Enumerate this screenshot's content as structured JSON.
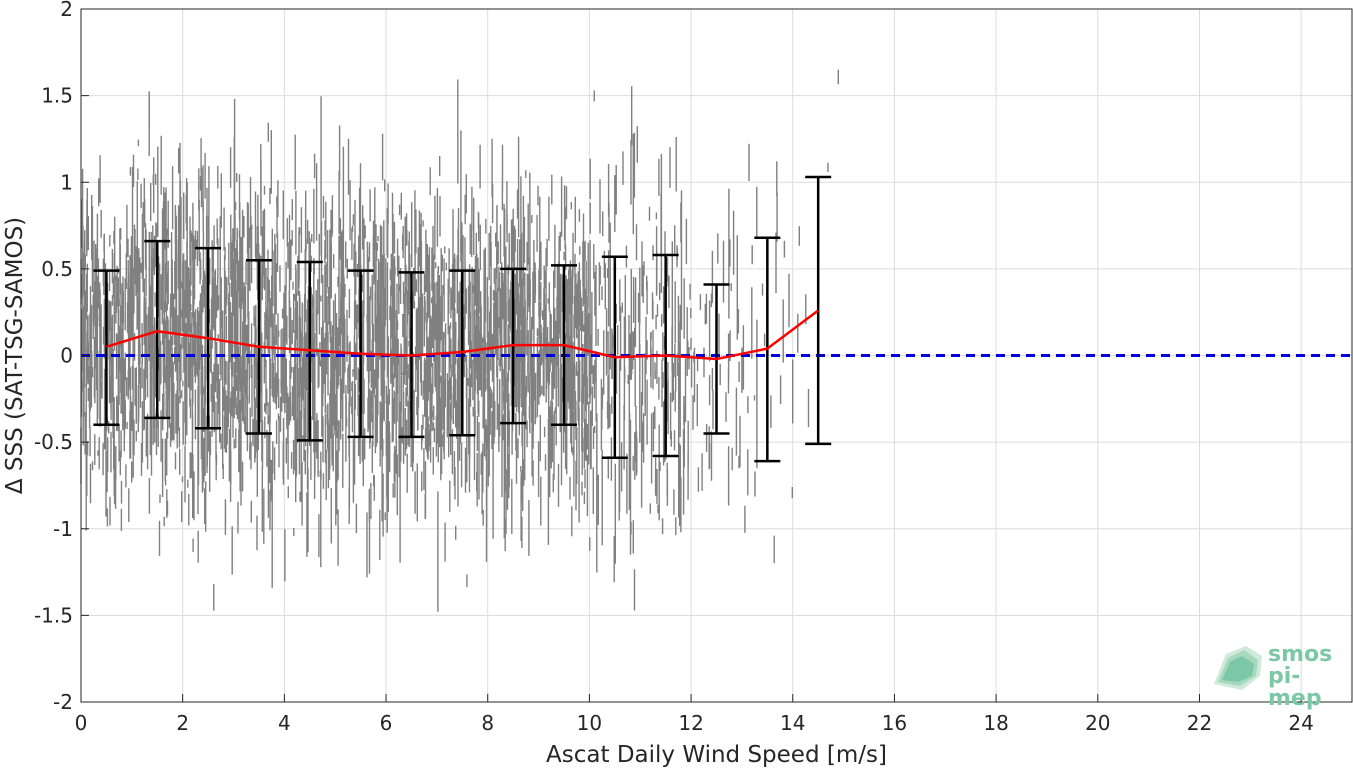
{
  "chart_data": {
    "type": "scatter",
    "xlabel": "Ascat Daily Wind Speed [m/s]",
    "ylabel": "Δ SSS (SAT-TSG-SAMOS)",
    "xlim": [
      0,
      25
    ],
    "ylim": [
      -2,
      2
    ],
    "xticks": [
      0,
      2,
      4,
      6,
      8,
      10,
      12,
      14,
      16,
      18,
      20,
      22,
      24
    ],
    "yticks": [
      -2,
      -1.5,
      -1,
      -0.5,
      0,
      0.5,
      1,
      1.5,
      2
    ],
    "grid": true,
    "scatter_color": "#808080",
    "scatter_extent": [
      {
        "x": 0.5,
        "mean": 0.05,
        "sd": 0.45
      },
      {
        "x": 1.5,
        "mean": 0.14,
        "sd": 0.51
      },
      {
        "x": 2.5,
        "mean": 0.1,
        "sd": 0.52
      },
      {
        "x": 3.5,
        "mean": 0.05,
        "sd": 0.5
      },
      {
        "x": 4.5,
        "mean": 0.03,
        "sd": 0.51
      },
      {
        "x": 5.5,
        "mean": 0.01,
        "sd": 0.48
      },
      {
        "x": 6.5,
        "mean": 0.0,
        "sd": 0.47
      },
      {
        "x": 7.5,
        "mean": 0.02,
        "sd": 0.47
      },
      {
        "x": 8.5,
        "mean": 0.06,
        "sd": 0.45
      },
      {
        "x": 9.5,
        "mean": 0.06,
        "sd": 0.46
      },
      {
        "x": 10.5,
        "mean": -0.01,
        "sd": 0.58
      },
      {
        "x": 11.5,
        "mean": 0.0,
        "sd": 0.58
      },
      {
        "x": 12.5,
        "mean": -0.02,
        "sd": 0.43
      },
      {
        "x": 13.5,
        "mean": 0.04,
        "sd": 0.64
      },
      {
        "x": 14.5,
        "mean": 0.26,
        "sd": 0.77
      }
    ],
    "series": [
      {
        "type": "line",
        "color": "#ff0000",
        "x": [
          0.5,
          1.5,
          2.5,
          3.5,
          4.5,
          5.5,
          6.5,
          7.5,
          8.5,
          9.5,
          10.5,
          11.5,
          12.5,
          13.5,
          14.5
        ],
        "y": [
          0.05,
          0.14,
          0.1,
          0.05,
          0.03,
          0.01,
          0.0,
          0.02,
          0.06,
          0.06,
          -0.01,
          0.0,
          -0.02,
          0.04,
          0.26
        ]
      },
      {
        "type": "errorbar",
        "color": "#000000",
        "x": [
          0.5,
          1.5,
          2.5,
          3.5,
          4.5,
          5.5,
          6.5,
          7.5,
          8.5,
          9.5,
          10.5,
          11.5,
          12.5,
          13.5,
          14.5
        ],
        "upper": [
          0.49,
          0.66,
          0.62,
          0.55,
          0.54,
          0.49,
          0.48,
          0.49,
          0.5,
          0.52,
          0.57,
          0.58,
          0.41,
          0.68,
          1.03
        ],
        "lower": [
          -0.4,
          -0.36,
          -0.42,
          -0.45,
          -0.49,
          -0.47,
          -0.47,
          -0.46,
          -0.39,
          -0.4,
          -0.59,
          -0.58,
          -0.45,
          -0.61,
          -0.51
        ]
      },
      {
        "type": "reference-line",
        "color": "#0000dd",
        "style": "dashed",
        "y": 0
      }
    ]
  },
  "logo": {
    "line1": "smos",
    "line2": "pi-mep",
    "color": "#7cc8a6"
  }
}
